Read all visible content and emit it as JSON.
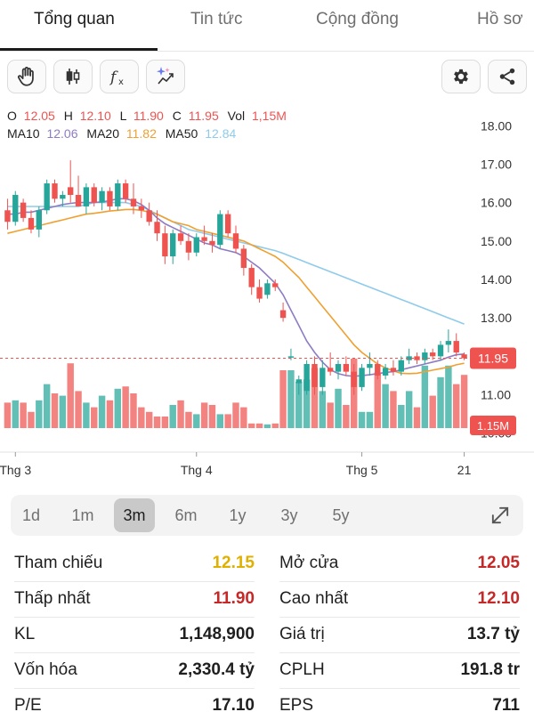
{
  "tabs": [
    {
      "label": "Tổng quan",
      "active": true
    },
    {
      "label": "Tin tức",
      "active": false
    },
    {
      "label": "Cộng đồng",
      "active": false
    },
    {
      "label": "Hồ sơ",
      "active": false
    }
  ],
  "toolbar": {
    "icons": [
      "hand-icon",
      "candlestick-icon",
      "fx-icon",
      "sparkle-chart-icon",
      "gear-icon",
      "share-icon"
    ]
  },
  "colors": {
    "up": "#26a69a",
    "down": "#ef5350",
    "ma10": "#8e7cc3",
    "ma20": "#f0a030",
    "ma50": "#8fcbea",
    "reference": "#e0b000",
    "red_text": "#c62828"
  },
  "ohlc": {
    "o_label": "O",
    "o_value": "12.05",
    "h_label": "H",
    "h_value": "12.10",
    "l_label": "L",
    "l_value": "11.90",
    "c_label": "C",
    "c_value": "11.95",
    "vol_label": "Vol",
    "vol_value": "1,15M"
  },
  "ma": {
    "ma10_label": "MA10",
    "ma10_value": "12.06",
    "ma20_label": "MA20",
    "ma20_value": "11.82",
    "ma50_label": "MA50",
    "ma50_value": "12.84"
  },
  "chart_data": {
    "type": "candlestick",
    "y_ticks": [
      "18.00",
      "17.00",
      "16.00",
      "15.00",
      "14.00",
      "13.00",
      "11.00",
      "10.00"
    ],
    "y_tick_values": [
      18,
      17,
      16,
      15,
      14,
      13,
      11,
      10
    ],
    "ylim": [
      9.6,
      18.4
    ],
    "x_labels": [
      "Thg 3",
      "Thg 4",
      "Thg 5",
      "21"
    ],
    "x_label_index": [
      1,
      24,
      45,
      58
    ],
    "last_price_label": "11.95",
    "last_price": 11.95,
    "last_volume_label": "1.15M",
    "grid": false,
    "candles": [
      [
        15.8,
        16.1,
        15.3,
        15.5
      ],
      [
        15.5,
        16.3,
        15.4,
        16.2
      ],
      [
        16.0,
        16.1,
        15.5,
        15.6
      ],
      [
        15.6,
        15.8,
        15.2,
        15.3
      ],
      [
        15.3,
        15.9,
        15.1,
        15.8
      ],
      [
        15.8,
        16.6,
        15.7,
        16.5
      ],
      [
        16.5,
        16.6,
        16.0,
        16.1
      ],
      [
        16.1,
        16.3,
        15.9,
        16.2
      ],
      [
        16.4,
        17.1,
        16.0,
        16.2
      ],
      [
        16.2,
        16.7,
        15.9,
        15.9
      ],
      [
        15.9,
        16.5,
        15.7,
        16.4
      ],
      [
        16.4,
        16.5,
        15.9,
        16.0
      ],
      [
        16.0,
        16.4,
        15.8,
        16.3
      ],
      [
        16.3,
        16.4,
        15.8,
        15.9
      ],
      [
        15.9,
        16.6,
        15.8,
        16.5
      ],
      [
        16.5,
        16.6,
        16.0,
        16.1
      ],
      [
        16.1,
        16.5,
        15.7,
        15.9
      ],
      [
        15.9,
        16.1,
        15.6,
        15.8
      ],
      [
        15.8,
        16.0,
        15.4,
        15.5
      ],
      [
        15.5,
        15.8,
        15.0,
        15.2
      ],
      [
        15.2,
        15.4,
        14.4,
        14.6
      ],
      [
        14.6,
        15.3,
        14.4,
        15.2
      ],
      [
        15.2,
        15.4,
        14.9,
        15.0
      ],
      [
        15.0,
        15.2,
        14.5,
        14.7
      ],
      [
        14.7,
        15.2,
        14.6,
        15.1
      ],
      [
        15.1,
        15.4,
        14.9,
        15.0
      ],
      [
        15.0,
        15.2,
        14.7,
        14.9
      ],
      [
        14.9,
        15.8,
        14.8,
        15.7
      ],
      [
        15.7,
        15.8,
        15.1,
        15.2
      ],
      [
        15.2,
        15.4,
        14.7,
        14.8
      ],
      [
        14.8,
        14.9,
        14.1,
        14.3
      ],
      [
        14.3,
        14.4,
        13.6,
        13.8
      ],
      [
        13.8,
        14.0,
        13.4,
        13.5
      ],
      [
        13.6,
        14.0,
        13.5,
        13.9
      ],
      [
        13.9,
        14.0,
        13.7,
        13.8
      ],
      [
        13.2,
        13.4,
        12.9,
        13.0
      ],
      [
        12.0,
        12.2,
        11.9,
        12.0
      ],
      [
        11.3,
        11.5,
        11.0,
        11.4
      ],
      [
        11.1,
        11.9,
        11.0,
        11.8
      ],
      [
        11.8,
        12.0,
        11.0,
        11.2
      ],
      [
        11.2,
        11.9,
        11.0,
        11.7
      ],
      [
        11.7,
        12.1,
        11.5,
        11.6
      ],
      [
        11.6,
        11.9,
        11.4,
        11.8
      ],
      [
        11.8,
        12.0,
        11.5,
        11.6
      ],
      [
        11.6,
        11.8,
        11.0,
        11.2
      ],
      [
        11.2,
        11.8,
        11.1,
        11.7
      ],
      [
        11.7,
        12.1,
        11.5,
        11.8
      ],
      [
        11.8,
        11.9,
        11.4,
        11.5
      ],
      [
        11.5,
        11.8,
        11.4,
        11.7
      ],
      [
        11.7,
        11.9,
        11.5,
        11.6
      ],
      [
        11.6,
        12.0,
        11.5,
        11.9
      ],
      [
        11.9,
        12.2,
        11.8,
        12.0
      ],
      [
        12.0,
        12.1,
        11.8,
        11.9
      ],
      [
        11.9,
        12.2,
        11.8,
        12.1
      ],
      [
        12.1,
        12.2,
        11.9,
        12.0
      ],
      [
        12.0,
        12.4,
        11.9,
        12.3
      ],
      [
        12.3,
        12.7,
        12.1,
        12.4
      ],
      [
        12.4,
        12.6,
        12.0,
        12.1
      ],
      [
        12.05,
        12.1,
        11.9,
        11.95
      ]
    ],
    "volumes": [
      0.55,
      0.6,
      0.55,
      0.35,
      0.6,
      0.95,
      0.75,
      0.7,
      1.4,
      0.8,
      0.55,
      0.45,
      0.7,
      0.6,
      0.85,
      0.9,
      0.75,
      0.45,
      0.35,
      0.25,
      0.25,
      0.5,
      0.6,
      0.35,
      0.3,
      0.55,
      0.5,
      0.3,
      0.3,
      0.55,
      0.45,
      0.1,
      0.1,
      0.08,
      0.1,
      1.25,
      1.25,
      1.0,
      1.05,
      1.3,
      0.8,
      0.55,
      0.85,
      0.5,
      1.5,
      0.35,
      0.35,
      1.2,
      0.95,
      0.8,
      0.5,
      0.8,
      0.45,
      1.35,
      0.7,
      1.1,
      1.35,
      0.95,
      1.15
    ],
    "ma10": [
      15.7,
      15.7,
      15.75,
      15.75,
      15.8,
      15.85,
      15.9,
      15.95,
      15.98,
      16.0,
      16.0,
      16.0,
      16.02,
      16.05,
      16.1,
      16.1,
      16.05,
      15.95,
      15.8,
      15.6,
      15.45,
      15.35,
      15.25,
      15.15,
      15.05,
      14.95,
      14.9,
      14.8,
      14.75,
      14.7,
      14.6,
      14.45,
      14.3,
      14.1,
      13.9,
      13.6,
      13.2,
      12.8,
      12.4,
      12.1,
      11.85,
      11.65,
      11.55,
      11.5,
      11.48,
      11.5,
      11.52,
      11.55,
      11.58,
      11.6,
      11.65,
      11.7,
      11.75,
      11.8,
      11.85,
      11.9,
      11.98,
      12.04,
      12.06
    ],
    "ma20": [
      15.2,
      15.25,
      15.3,
      15.35,
      15.4,
      15.45,
      15.5,
      15.55,
      15.6,
      15.65,
      15.7,
      15.72,
      15.75,
      15.78,
      15.8,
      15.82,
      15.82,
      15.8,
      15.75,
      15.7,
      15.6,
      15.5,
      15.45,
      15.4,
      15.3,
      15.25,
      15.2,
      15.15,
      15.1,
      15.05,
      15.0,
      14.9,
      14.8,
      14.7,
      14.6,
      14.45,
      14.25,
      14.05,
      13.8,
      13.55,
      13.3,
      13.05,
      12.8,
      12.55,
      12.3,
      12.1,
      11.95,
      11.8,
      11.7,
      11.62,
      11.56,
      11.55,
      11.56,
      11.6,
      11.64,
      11.68,
      11.72,
      11.78,
      11.82
    ],
    "ma50": [
      15.9,
      15.9,
      15.9,
      15.9,
      15.9,
      15.9,
      15.9,
      15.9,
      15.9,
      15.9,
      15.95,
      16.0,
      16.0,
      16.0,
      16.0,
      16.0,
      15.95,
      15.9,
      15.8,
      15.7,
      15.6,
      15.5,
      15.4,
      15.3,
      15.25,
      15.2,
      15.15,
      15.1,
      15.05,
      15.0,
      14.95,
      14.9,
      14.85,
      14.8,
      14.75,
      14.68,
      14.6,
      14.52,
      14.44,
      14.36,
      14.28,
      14.2,
      14.12,
      14.04,
      13.96,
      13.88,
      13.8,
      13.72,
      13.64,
      13.56,
      13.48,
      13.4,
      13.32,
      13.24,
      13.16,
      13.08,
      13.0,
      12.92,
      12.84
    ]
  },
  "periods": [
    {
      "label": "1d",
      "active": false
    },
    {
      "label": "1m",
      "active": false
    },
    {
      "label": "3m",
      "active": true
    },
    {
      "label": "6m",
      "active": false
    },
    {
      "label": "1y",
      "active": false
    },
    {
      "label": "3y",
      "active": false
    },
    {
      "label": "5y",
      "active": false
    }
  ],
  "stats": {
    "left": [
      {
        "label": "Tham chiếu",
        "value": "12.15",
        "color": "#e0b000"
      },
      {
        "label": "Thấp nhất",
        "value": "11.90",
        "color": "#c62828"
      },
      {
        "label": "KL",
        "value": "1,148,900",
        "color": "#1f1f1f"
      },
      {
        "label": "Vốn hóa",
        "value": "2,330.4 tỷ",
        "color": "#1f1f1f"
      },
      {
        "label": "P/E",
        "value": "17.10",
        "color": "#1f1f1f"
      }
    ],
    "right": [
      {
        "label": "Mở cửa",
        "value": "12.05",
        "color": "#c62828"
      },
      {
        "label": "Cao nhất",
        "value": "12.10",
        "color": "#c62828"
      },
      {
        "label": "Giá trị",
        "value": "13.7 tỷ",
        "color": "#1f1f1f"
      },
      {
        "label": "CPLH",
        "value": "191.8 tr",
        "color": "#1f1f1f"
      },
      {
        "label": "EPS",
        "value": "711",
        "color": "#1f1f1f"
      }
    ]
  }
}
